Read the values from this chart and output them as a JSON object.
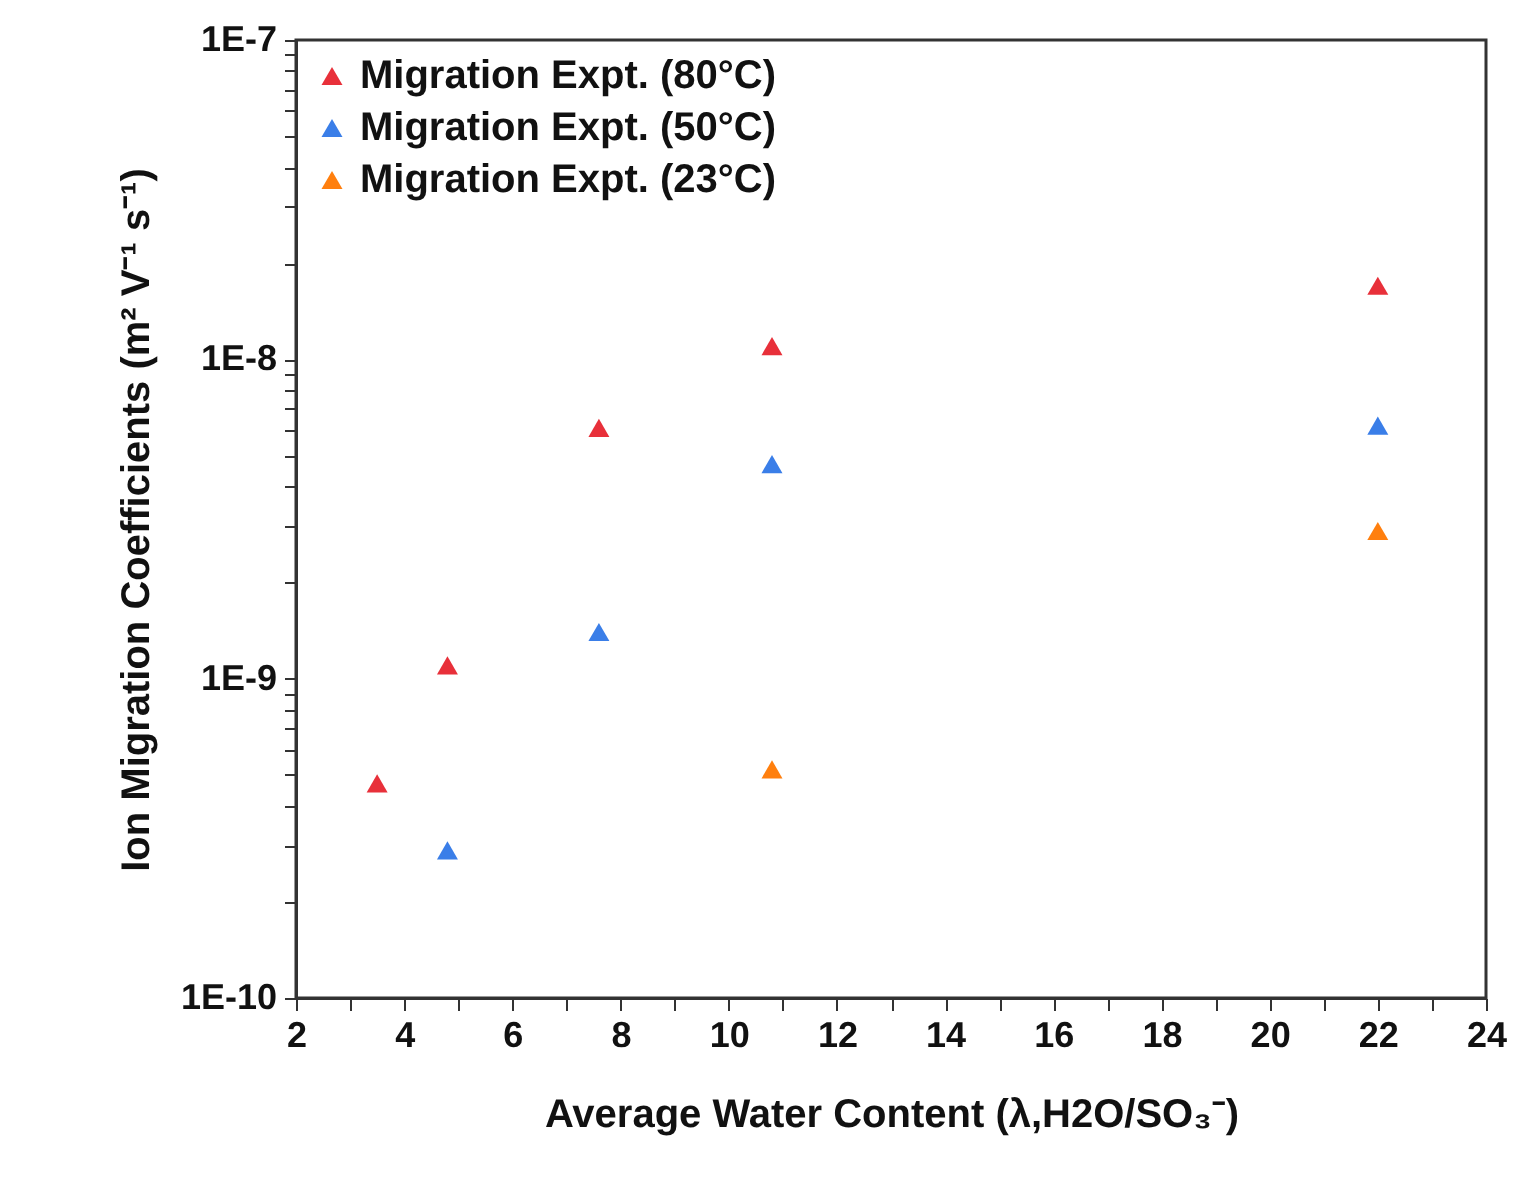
{
  "chart_data": {
    "type": "scatter",
    "xlabel": "Average Water Content (λ,H2O/SO₃⁻)",
    "ylabel": "Ion Migration Coefficients (m² V⁻¹ s⁻¹)",
    "xlim": [
      2,
      24
    ],
    "xticks": [
      2,
      {
        "value": 3,
        "label": null
      },
      4,
      {
        "value": 5,
        "label": null
      },
      6,
      {
        "value": 7,
        "label": null
      },
      8,
      {
        "value": 9,
        "label": null
      },
      10,
      {
        "value": 11,
        "label": null
      },
      12,
      {
        "value": 13,
        "label": null
      },
      14,
      {
        "value": 15,
        "label": null
      },
      16,
      {
        "value": 17,
        "label": null
      },
      18,
      {
        "value": 19,
        "label": null
      },
      20,
      {
        "value": 21,
        "label": null
      },
      22,
      {
        "value": 23,
        "label": null
      },
      24
    ],
    "ylim": [
      1e-10,
      1e-07
    ],
    "yticks": [
      {
        "value": 1e-10,
        "label": "1E-10"
      },
      {
        "value": 2e-10,
        "label": null
      },
      {
        "value": 3e-10,
        "label": null
      },
      {
        "value": 4e-10,
        "label": null
      },
      {
        "value": 5e-10,
        "label": null
      },
      {
        "value": 6e-10,
        "label": null
      },
      {
        "value": 7e-10,
        "label": null
      },
      {
        "value": 8e-10,
        "label": null
      },
      {
        "value": 9e-10,
        "label": null
      },
      {
        "value": 1e-09,
        "label": "1E-9"
      },
      {
        "value": 2e-09,
        "label": null
      },
      {
        "value": 3e-09,
        "label": null
      },
      {
        "value": 4e-09,
        "label": null
      },
      {
        "value": 5e-09,
        "label": null
      },
      {
        "value": 6e-09,
        "label": null
      },
      {
        "value": 7e-09,
        "label": null
      },
      {
        "value": 8e-09,
        "label": null
      },
      {
        "value": 9e-09,
        "label": null
      },
      {
        "value": 1e-08,
        "label": "1E-8"
      },
      {
        "value": 2e-08,
        "label": null
      },
      {
        "value": 3e-08,
        "label": null
      },
      {
        "value": 4e-08,
        "label": null
      },
      {
        "value": 5e-08,
        "label": null
      },
      {
        "value": 6e-08,
        "label": null
      },
      {
        "value": 7e-08,
        "label": null
      },
      {
        "value": 8e-08,
        "label": null
      },
      {
        "value": 9e-08,
        "label": null
      },
      {
        "value": 1e-07,
        "label": "1E-7"
      }
    ],
    "log": "y",
    "grid": false,
    "legend": "top left",
    "marker": "triangle",
    "series": [
      {
        "name": "Migration Expt. (80°C)",
        "color": "#e8303a",
        "x": [
          3.5,
          4.8,
          7.6,
          10.8,
          22
        ],
        "values": [
          4.7e-10,
          1.1e-09,
          6.1e-09,
          1.1e-08,
          1.7e-08
        ]
      },
      {
        "name": "Migration Expt. (50°C)",
        "color": "#3a7ee8",
        "x": [
          4.8,
          7.6,
          10.8,
          22
        ],
        "values": [
          2.9e-10,
          1.4e-09,
          4.7e-09,
          6.2e-09
        ]
      },
      {
        "name": "Migration Expt. (23°C)",
        "color": "#ff7f0e",
        "x": [
          10.8,
          22
        ],
        "values": [
          5.2e-10,
          2.9e-09
        ]
      }
    ]
  }
}
